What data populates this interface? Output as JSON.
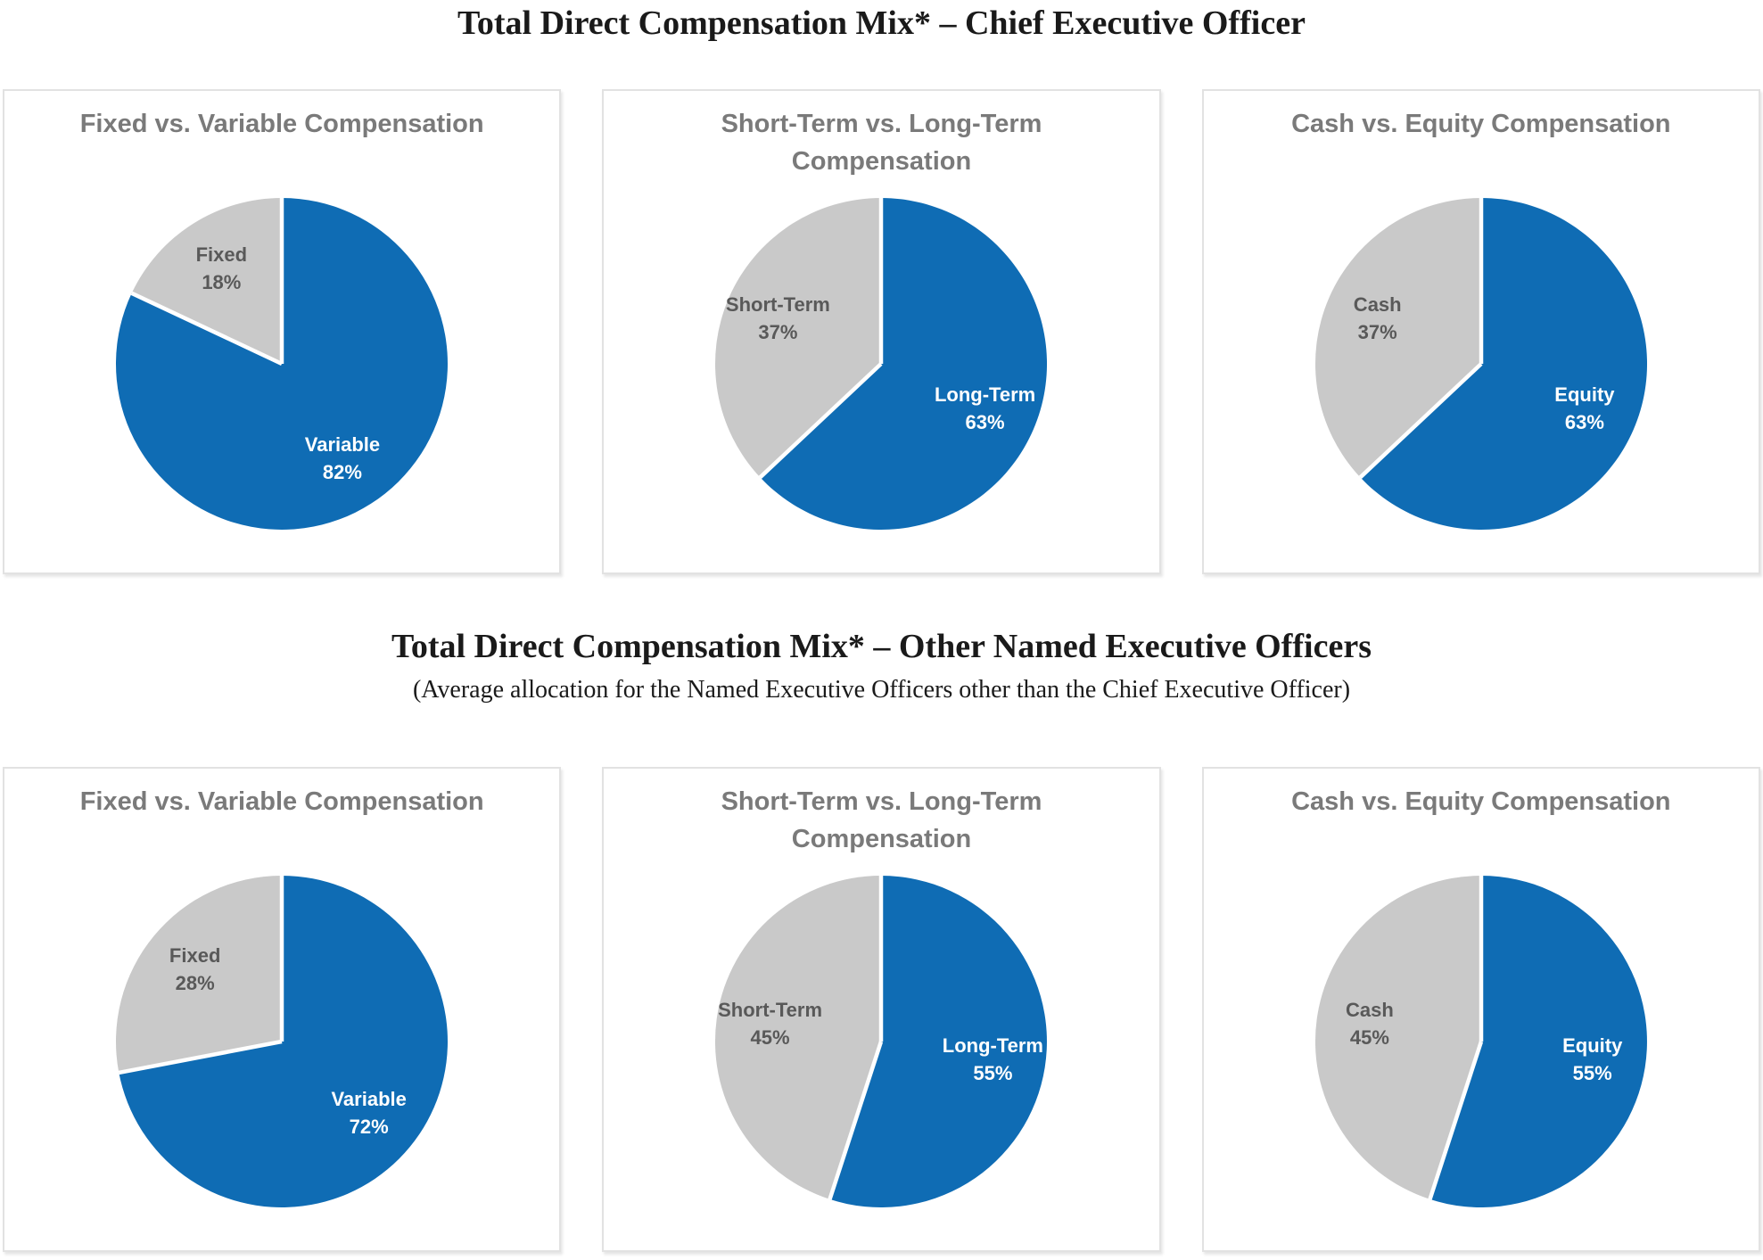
{
  "style": {
    "blue": "#0F6CB4",
    "gray": "#C9C9C9",
    "on_blue": "#FFFFFF",
    "on_gray": "#595959",
    "panel_title_color": "#7A7A7A",
    "heading_color": "#1A1A1A",
    "panel_border_color": "#E2E2E2"
  },
  "sections": [
    {
      "heading": "Total Direct Compensation Mix* – Chief Executive Officer",
      "subheading": null
    },
    {
      "heading": "Total Direct Compensation Mix* – Other Named Executive Officers",
      "subheading": "(Average allocation for the Named Executive Officers other than the Chief Executive Officer)"
    }
  ],
  "chart_data": [
    {
      "type": "pie",
      "group": "Total Direct Compensation Mix* – Chief Executive Officer",
      "title": "Fixed vs. Variable Compensation",
      "unit": "%",
      "start_angle": "12-oclock",
      "direction": "clockwise",
      "legend": "none",
      "slices": [
        {
          "label": "Variable",
          "value": 82,
          "color": "blue",
          "text_color": "on_blue"
        },
        {
          "label": "Fixed",
          "value": 18,
          "color": "gray",
          "text_color": "on_gray"
        }
      ]
    },
    {
      "type": "pie",
      "group": "Total Direct Compensation Mix* – Chief Executive Officer",
      "title": "Short-Term vs. Long-Term\nCompensation",
      "unit": "%",
      "start_angle": "12-oclock",
      "direction": "clockwise",
      "legend": "none",
      "slices": [
        {
          "label": "Long-Term",
          "value": 63,
          "color": "blue",
          "text_color": "on_blue"
        },
        {
          "label": "Short-Term",
          "value": 37,
          "color": "gray",
          "text_color": "on_gray"
        }
      ]
    },
    {
      "type": "pie",
      "group": "Total Direct Compensation Mix* – Chief Executive Officer",
      "title": "Cash vs. Equity Compensation",
      "unit": "%",
      "start_angle": "12-oclock",
      "direction": "clockwise",
      "legend": "none",
      "slices": [
        {
          "label": "Equity",
          "value": 63,
          "color": "blue",
          "text_color": "on_blue"
        },
        {
          "label": "Cash",
          "value": 37,
          "color": "gray",
          "text_color": "on_gray"
        }
      ]
    },
    {
      "type": "pie",
      "group": "Total Direct Compensation Mix* – Other Named Executive Officers",
      "title": "Fixed vs. Variable Compensation",
      "unit": "%",
      "start_angle": "12-oclock",
      "direction": "clockwise",
      "legend": "none",
      "slices": [
        {
          "label": "Variable",
          "value": 72,
          "color": "blue",
          "text_color": "on_blue"
        },
        {
          "label": "Fixed",
          "value": 28,
          "color": "gray",
          "text_color": "on_gray"
        }
      ]
    },
    {
      "type": "pie",
      "group": "Total Direct Compensation Mix* – Other Named Executive Officers",
      "title": "Short-Term vs. Long-Term\nCompensation",
      "unit": "%",
      "start_angle": "12-oclock",
      "direction": "clockwise",
      "legend": "none",
      "slices": [
        {
          "label": "Long-Term",
          "value": 55,
          "color": "blue",
          "text_color": "on_blue"
        },
        {
          "label": "Short-Term",
          "value": 45,
          "color": "gray",
          "text_color": "on_gray"
        }
      ]
    },
    {
      "type": "pie",
      "group": "Total Direct Compensation Mix* – Other Named Executive Officers",
      "title": "Cash vs. Equity Compensation",
      "unit": "%",
      "start_angle": "12-oclock",
      "direction": "clockwise",
      "legend": "none",
      "slices": [
        {
          "label": "Equity",
          "value": 55,
          "color": "blue",
          "text_color": "on_blue"
        },
        {
          "label": "Cash",
          "value": 45,
          "color": "gray",
          "text_color": "on_gray"
        }
      ]
    }
  ]
}
